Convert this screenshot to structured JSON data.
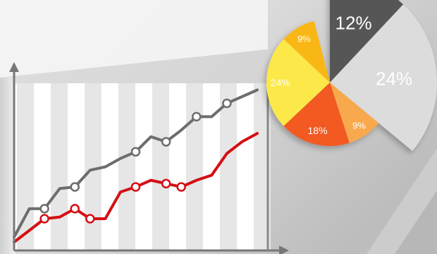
{
  "chart_data": [
    {
      "type": "line",
      "title": "",
      "xlabel": "",
      "ylabel": "",
      "ylim": [
        0,
        100
      ],
      "grid": "vertical bands",
      "x": [
        0,
        1,
        2,
        3,
        4,
        5,
        6,
        7,
        8,
        9,
        10,
        11,
        12,
        13,
        14,
        15,
        16
      ],
      "series": [
        {
          "color": "#6d6d6d",
          "values": [
            8,
            25,
            25,
            37,
            38,
            48,
            50,
            55,
            59,
            68,
            65,
            72,
            80,
            80,
            88,
            92,
            96
          ],
          "markers": [
            false,
            false,
            true,
            false,
            true,
            false,
            false,
            false,
            true,
            false,
            true,
            false,
            true,
            false,
            true,
            false,
            false
          ]
        },
        {
          "color": "#d40f14",
          "values": [
            5,
            12,
            19,
            20,
            25,
            19,
            19,
            35,
            38,
            42,
            40,
            38,
            42,
            45,
            58,
            65,
            70
          ],
          "markers": [
            false,
            false,
            true,
            false,
            true,
            true,
            false,
            false,
            true,
            false,
            true,
            true,
            false,
            false,
            false,
            false,
            false
          ]
        }
      ]
    },
    {
      "type": "pie",
      "slices": [
        {
          "label": "12%",
          "value": 12,
          "color": "#575757"
        },
        {
          "label": "24%",
          "value": 24,
          "color": "#dcdcdc"
        },
        {
          "label": "9%",
          "value": 9,
          "color": "#f9a94d"
        },
        {
          "label": "18%",
          "value": 18,
          "color": "#f25a22"
        },
        {
          "label": "24%",
          "value": 24,
          "color": "#fce84a"
        },
        {
          "label": "9%",
          "value": 9,
          "color": "#f9b715"
        }
      ]
    }
  ]
}
